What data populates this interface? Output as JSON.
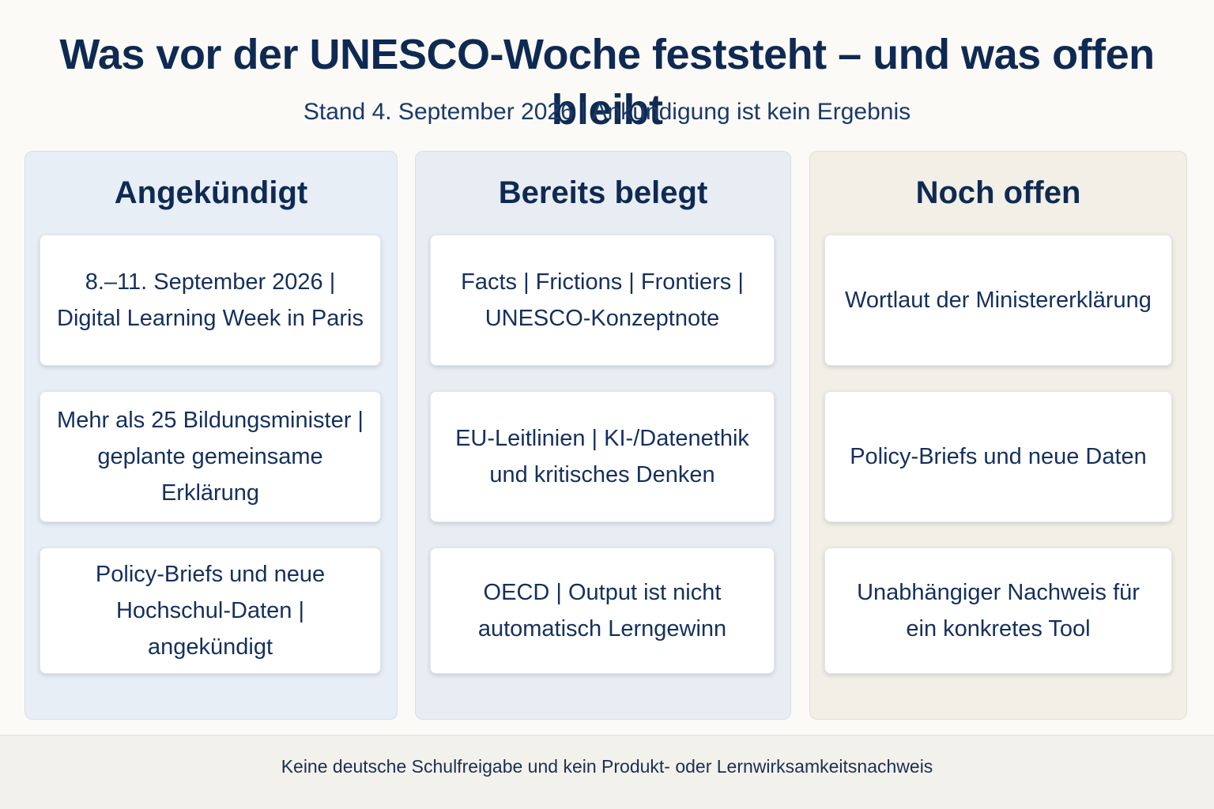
{
  "header": {
    "title": "Was vor der UNESCO-Woche feststeht – und was offen bleibt",
    "subtitle": "Stand 4. September 2026 | Ankündigung ist kein Ergebnis"
  },
  "columns": [
    {
      "heading": "Angekündigt",
      "cards": [
        "8.–11. September 2026 |\nDigital Learning Week in Paris",
        "Mehr als 25 Bildungsminister |\ngeplante gemeinsame Erklärung",
        "Policy-Briefs und neue\nHochschul-Daten | angekündigt"
      ]
    },
    {
      "heading": "Bereits belegt",
      "cards": [
        "Facts | Frictions | Frontiers |\nUNESCO-Konzeptnote",
        "EU-Leitlinien | KI-/Datenethik\nund kritisches Denken",
        "OECD | Output ist nicht\nautomatisch Lerngewinn"
      ]
    },
    {
      "heading": "Noch offen",
      "cards": [
        "Wortlaut der Ministererklärung",
        "Policy-Briefs und neue Daten",
        "Unabhängiger Nachweis für\nein konkretes Tool"
      ]
    }
  ],
  "footer": {
    "text": "Keine deutsche Schulfreigabe und kein Produkt- oder Lernwirksamkeitsnachweis"
  },
  "colors": {
    "title": "#0f2a52",
    "column_1_bg": "#e7eef6",
    "column_2_bg": "#e8edf3",
    "column_3_bg": "#f1efe6"
  }
}
